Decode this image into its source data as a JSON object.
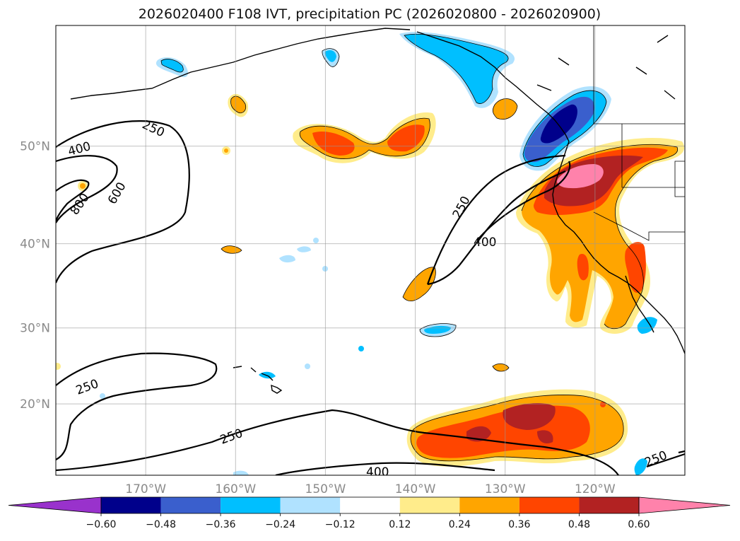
{
  "figure": {
    "title": "2026020400 F108 IVT, precipitation PC (2026020800 - 2026020900)"
  },
  "chart_data": {
    "type": "map-contour",
    "title": "2026020400 F108 IVT, precipitation PC (2026020800 - 2026020900)",
    "projection": "Mercator",
    "lon_range": [
      -180,
      -110
    ],
    "lat_range": [
      10,
      60
    ],
    "x_tick_labels": [
      "170°W",
      "160°W",
      "150°W",
      "140°W",
      "130°W",
      "120°W"
    ],
    "x_tick_values": [
      -170,
      -160,
      -150,
      -140,
      -130,
      -120
    ],
    "y_tick_labels": [
      "20°N",
      "30°N",
      "40°N",
      "50°N"
    ],
    "y_tick_values": [
      20,
      30,
      40,
      50
    ],
    "grid": true,
    "colorbar": {
      "orientation": "horizontal",
      "extend": "both",
      "tick_labels": [
        "−0.60",
        "−0.48",
        "−0.36",
        "−0.24",
        "−0.12",
        "0.12",
        "0.24",
        "0.36",
        "0.48",
        "0.60"
      ],
      "levels": [
        -0.6,
        -0.48,
        -0.36,
        -0.24,
        -0.12,
        0.12,
        0.24,
        0.36,
        0.48,
        0.6
      ],
      "colors": [
        "#9932cc",
        "#00008b",
        "#3a5fcd",
        "#00bfff",
        "#b0e2ff",
        "#ffffff",
        "#ffec8b",
        "#ffa500",
        "#ff4500",
        "#b22222",
        "#ff82ab"
      ]
    },
    "ivt_contour_labels": [
      "250",
      "400",
      "600",
      "800",
      "250",
      "400",
      "250",
      "250",
      "400",
      "250"
    ],
    "ivt_contour_levels": [
      250,
      400,
      600,
      800
    ]
  }
}
